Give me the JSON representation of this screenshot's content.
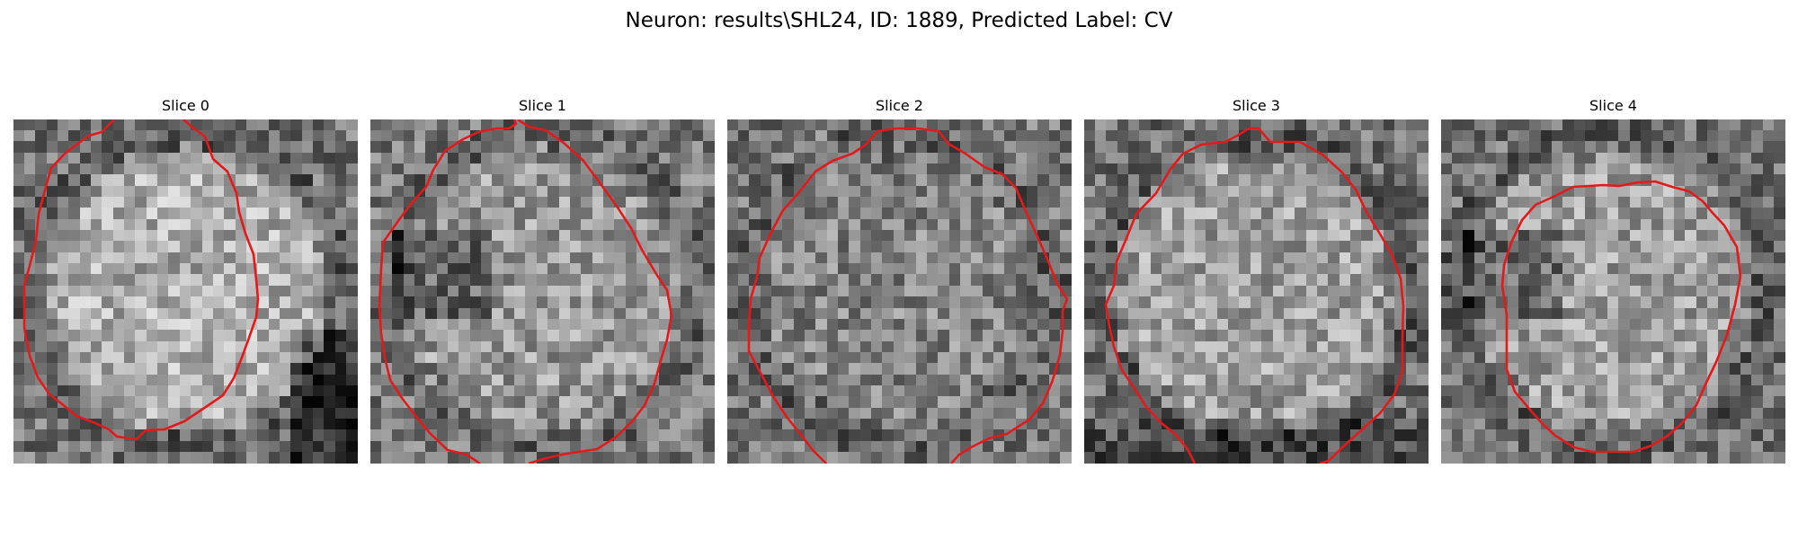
{
  "figure": {
    "title": "Neuron: results\\SHL24, ID: 1889, Predicted Label: CV"
  },
  "colors": {
    "contour": "#e31a1c",
    "colormap": "gray"
  },
  "panels": [
    {
      "title": "Slice 0",
      "grid_size": 31,
      "seed": 11,
      "center_brightness": 0.68,
      "surround_brightness": 0.45,
      "dark_corner": "bottom-right"
    },
    {
      "title": "Slice 1",
      "grid_size": 31,
      "seed": 23,
      "center_brightness": 0.6,
      "surround_brightness": 0.48,
      "dark_corner": "left-center"
    },
    {
      "title": "Slice 2",
      "grid_size": 31,
      "seed": 37,
      "center_brightness": 0.52,
      "surround_brightness": 0.46,
      "dark_corner": "none"
    },
    {
      "title": "Slice 3",
      "grid_size": 31,
      "seed": 41,
      "center_brightness": 0.62,
      "surround_brightness": 0.44,
      "dark_corner": "bottom"
    },
    {
      "title": "Slice 4",
      "grid_size": 31,
      "seed": 53,
      "center_brightness": 0.62,
      "surround_brightness": 0.45,
      "dark_corner": "left-center"
    }
  ]
}
